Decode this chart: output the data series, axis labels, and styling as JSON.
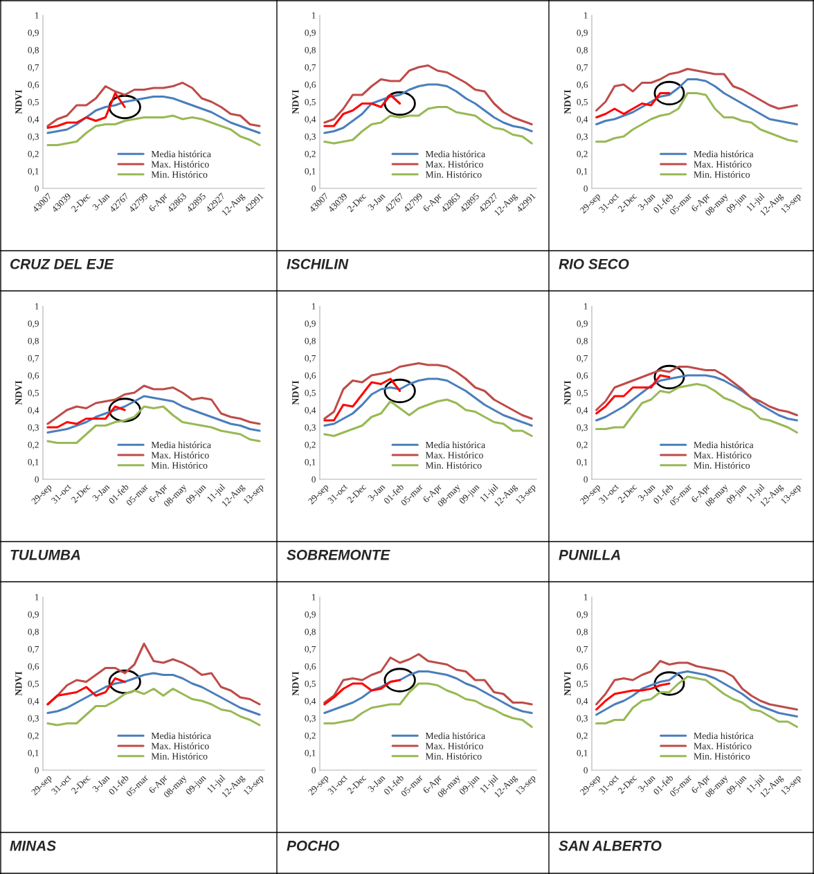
{
  "chart_data": [
    {
      "type": "line",
      "title": "CRUZ DEL EJE",
      "ylabel": "NDVI",
      "legend": "bottom",
      "ylim": [
        0,
        1
      ],
      "yticks": [
        0,
        {
          "value": 0.1,
          "label": "0,1"
        },
        {
          "value": 0.2,
          "label": "0,2"
        },
        {
          "value": 0.3,
          "label": "0,3"
        },
        {
          "value": 0.4,
          "label": "0,4"
        },
        {
          "value": 0.5,
          "label": "0,5"
        },
        {
          "value": 0.6,
          "label": "0,6"
        },
        {
          "value": 0.7,
          "label": "0,7"
        },
        {
          "value": 0.8,
          "label": "0,8"
        },
        {
          "value": 0.9,
          "label": "0,9"
        },
        1
      ],
      "categories": [
        "43007",
        null,
        "43039",
        null,
        "2-Dec",
        null,
        "3-Jan",
        null,
        "42767",
        null,
        "42799",
        null,
        "6-Apr",
        null,
        "42863",
        null,
        "42895",
        null,
        "42927",
        null,
        "12-Aug",
        null,
        "42991"
      ],
      "series": [
        {
          "name": "Media histórica",
          "color": "#4a7ebb",
          "values": [
            0.32,
            0.33,
            0.34,
            0.37,
            0.41,
            0.45,
            0.47,
            0.48,
            0.5,
            0.51,
            0.52,
            0.53,
            0.53,
            0.52,
            0.5,
            0.48,
            0.46,
            0.44,
            0.41,
            0.38,
            0.36,
            0.34,
            0.32
          ]
        },
        {
          "name": "Max. Histórico",
          "color": "#be4b48",
          "values": [
            0.36,
            0.4,
            0.42,
            0.48,
            0.48,
            0.52,
            0.59,
            0.56,
            0.54,
            0.57,
            0.57,
            0.58,
            0.58,
            0.59,
            0.61,
            0.58,
            0.52,
            0.5,
            0.47,
            0.43,
            0.42,
            0.37,
            0.36
          ]
        },
        {
          "name": "Min. Histórico",
          "color": "#98b954",
          "values": [
            0.25,
            0.25,
            0.26,
            0.27,
            0.32,
            0.36,
            0.37,
            0.37,
            0.39,
            0.4,
            0.41,
            0.41,
            0.41,
            0.42,
            0.4,
            0.41,
            0.4,
            0.38,
            0.36,
            0.34,
            0.3,
            0.28,
            0.25
          ]
        },
        {
          "color": "#ff0000",
          "values": [
            0.35,
            0.36,
            0.38,
            0.38,
            0.41,
            0.39,
            0.41,
            0.55,
            0.47,
            null,
            null,
            null,
            null,
            null,
            null,
            null,
            null,
            null,
            null,
            null,
            null,
            null,
            null
          ]
        }
      ]
    },
    {
      "type": "line",
      "title": "ISCHILIN",
      "ylabel": "NDVI",
      "legend": "bottom",
      "ylim": [
        0,
        1
      ],
      "yticks": [
        0,
        {
          "value": 0.1,
          "label": "0,1"
        },
        {
          "value": 0.2,
          "label": "0,2"
        },
        {
          "value": 0.3,
          "label": "0,3"
        },
        {
          "value": 0.4,
          "label": "0,4"
        },
        {
          "value": 0.5,
          "label": "0,5"
        },
        {
          "value": 0.6,
          "label": "0,6"
        },
        {
          "value": 0.7,
          "label": "0,7"
        },
        {
          "value": 0.8,
          "label": "0,8"
        },
        {
          "value": 0.9,
          "label": "0,9"
        },
        1
      ],
      "categories": [
        "43007",
        null,
        "43039",
        null,
        "2-Dec",
        null,
        "3-Jan",
        null,
        "42767",
        null,
        "42799",
        null,
        "6-Apr",
        null,
        "42863",
        null,
        "42895",
        null,
        "42927",
        null,
        "12-Aug",
        null,
        "42991"
      ],
      "series": [
        {
          "name": "Media histórica",
          "color": "#4a7ebb",
          "values": [
            0.32,
            0.33,
            0.35,
            0.39,
            0.43,
            0.49,
            0.51,
            0.53,
            0.54,
            0.57,
            0.59,
            0.6,
            0.6,
            0.59,
            0.56,
            0.52,
            0.49,
            0.45,
            0.41,
            0.38,
            0.36,
            0.35,
            0.33
          ]
        },
        {
          "name": "Max. Histórico",
          "color": "#be4b48",
          "values": [
            0.38,
            0.4,
            0.46,
            0.54,
            0.54,
            0.59,
            0.63,
            0.62,
            0.62,
            0.68,
            0.7,
            0.71,
            0.68,
            0.67,
            0.64,
            0.61,
            0.57,
            0.56,
            0.49,
            0.44,
            0.41,
            0.39,
            0.37
          ]
        },
        {
          "name": "Min. Histórico",
          "color": "#98b954",
          "values": [
            0.27,
            0.26,
            0.27,
            0.28,
            0.33,
            0.37,
            0.38,
            0.42,
            0.41,
            0.42,
            0.42,
            0.46,
            0.47,
            0.47,
            0.44,
            0.43,
            0.42,
            0.38,
            0.35,
            0.34,
            0.31,
            0.3,
            0.26
          ]
        },
        {
          "color": "#ff0000",
          "values": [
            0.36,
            0.36,
            0.43,
            0.45,
            0.49,
            0.49,
            0.47,
            0.54,
            0.49,
            null,
            null,
            null,
            null,
            null,
            null,
            null,
            null,
            null,
            null,
            null,
            null,
            null,
            null
          ]
        }
      ]
    },
    {
      "type": "line",
      "title": "RIO SECO",
      "ylabel": "NDVI",
      "legend": "bottom",
      "ylim": [
        0,
        1
      ],
      "yticks": [
        0,
        {
          "value": 0.1,
          "label": "0,1"
        },
        {
          "value": 0.2,
          "label": "0,2"
        },
        {
          "value": 0.3,
          "label": "0,3"
        },
        {
          "value": 0.4,
          "label": "0,4"
        },
        {
          "value": 0.5,
          "label": "0,5"
        },
        {
          "value": 0.6,
          "label": "0,6"
        },
        {
          "value": 0.7,
          "label": "0,7"
        },
        {
          "value": 0.8,
          "label": "0,8"
        },
        {
          "value": 0.9,
          "label": "0,9"
        },
        1
      ],
      "categories": [
        "29-sep",
        null,
        "31-oct",
        null,
        "2-Dec",
        null,
        "3-Jan",
        null,
        "01-feb",
        null,
        "05-mar",
        null,
        "6-Apr",
        null,
        "08-may",
        null,
        "09-jun",
        null,
        "11-jul",
        null,
        "12-Aug",
        null,
        "13-sep"
      ],
      "series": [
        {
          "name": "Media histórica",
          "color": "#4a7ebb",
          "values": [
            0.37,
            0.39,
            0.4,
            0.42,
            0.44,
            0.47,
            0.5,
            0.53,
            0.54,
            0.58,
            0.63,
            0.63,
            0.62,
            0.59,
            0.55,
            0.52,
            0.49,
            0.46,
            0.43,
            0.4,
            0.39,
            0.38,
            0.37
          ]
        },
        {
          "name": "Max. Histórico",
          "color": "#be4b48",
          "values": [
            0.45,
            0.5,
            0.59,
            0.6,
            0.56,
            0.61,
            0.61,
            0.63,
            0.66,
            0.67,
            0.69,
            0.68,
            0.67,
            0.66,
            0.66,
            0.59,
            0.57,
            0.54,
            0.51,
            0.48,
            0.46,
            0.47,
            0.48
          ]
        },
        {
          "name": "Min. Histórico",
          "color": "#98b954",
          "values": [
            0.27,
            0.27,
            0.29,
            0.3,
            0.34,
            0.37,
            0.4,
            0.42,
            0.43,
            0.46,
            0.55,
            0.55,
            0.54,
            0.46,
            0.41,
            0.41,
            0.39,
            0.38,
            0.34,
            0.32,
            0.3,
            0.28,
            0.27
          ]
        },
        {
          "color": "#ff0000",
          "values": [
            0.41,
            0.43,
            0.46,
            0.43,
            0.46,
            0.49,
            0.48,
            0.55,
            0.55,
            null,
            null,
            null,
            null,
            null,
            null,
            null,
            null,
            null,
            null,
            null,
            null,
            null,
            null
          ]
        }
      ]
    },
    {
      "type": "line",
      "title": "TULUMBA",
      "ylabel": "NDVI",
      "legend": "bottom",
      "ylim": [
        0,
        1
      ],
      "yticks": [
        0,
        {
          "value": 0.1,
          "label": "0,1"
        },
        {
          "value": 0.2,
          "label": "0,2"
        },
        {
          "value": 0.3,
          "label": "0,3"
        },
        {
          "value": 0.4,
          "label": "0,4"
        },
        {
          "value": 0.5,
          "label": "0,5"
        },
        {
          "value": 0.6,
          "label": "0,6"
        },
        {
          "value": 0.7,
          "label": "0,7"
        },
        {
          "value": 0.8,
          "label": "0,8"
        },
        {
          "value": 0.9,
          "label": "0,9"
        },
        1
      ],
      "categories": [
        "29-sep",
        null,
        "31-oct",
        null,
        "2-Dec",
        null,
        "3-Jan",
        null,
        "01-feb",
        null,
        "05-mar",
        null,
        "6-Apr",
        null,
        "08-may",
        null,
        "09-jun",
        null,
        "11-jul",
        null,
        "12-Aug",
        null,
        "13-sep"
      ],
      "series": [
        {
          "name": "Media histórica",
          "color": "#4a7ebb",
          "values": [
            0.27,
            0.28,
            0.29,
            0.31,
            0.33,
            0.36,
            0.38,
            0.4,
            0.42,
            0.45,
            0.48,
            0.47,
            0.46,
            0.45,
            0.42,
            0.4,
            0.38,
            0.36,
            0.34,
            0.32,
            0.31,
            0.29,
            0.28
          ]
        },
        {
          "name": "Max. Histórico",
          "color": "#be4b48",
          "values": [
            0.32,
            0.36,
            0.4,
            0.42,
            0.41,
            0.44,
            0.45,
            0.46,
            0.49,
            0.5,
            0.54,
            0.52,
            0.52,
            0.53,
            0.5,
            0.46,
            0.47,
            0.46,
            0.38,
            0.36,
            0.35,
            0.33,
            0.32
          ]
        },
        {
          "name": "Min. Histórico",
          "color": "#98b954",
          "values": [
            0.22,
            0.21,
            0.21,
            0.21,
            0.26,
            0.31,
            0.31,
            0.33,
            0.34,
            0.36,
            0.42,
            0.41,
            0.42,
            0.37,
            0.33,
            0.32,
            0.31,
            0.3,
            0.28,
            0.27,
            0.26,
            0.23,
            0.22
          ]
        },
        {
          "color": "#ff0000",
          "values": [
            0.3,
            0.3,
            0.33,
            0.32,
            0.35,
            0.35,
            0.35,
            0.42,
            0.4,
            null,
            null,
            null,
            null,
            null,
            null,
            null,
            null,
            null,
            null,
            null,
            null,
            null,
            null
          ]
        }
      ]
    },
    {
      "type": "line",
      "title": "SOBREMONTE",
      "ylabel": "NDVI",
      "legend": "bottom",
      "ylim": [
        0,
        1
      ],
      "yticks": [
        0,
        {
          "value": 0.1,
          "label": "0,1"
        },
        {
          "value": 0.2,
          "label": "0,2"
        },
        {
          "value": 0.3,
          "label": "0,3"
        },
        {
          "value": 0.4,
          "label": "0,4"
        },
        {
          "value": 0.5,
          "label": "0,5"
        },
        {
          "value": 0.6,
          "label": "0,6"
        },
        {
          "value": 0.7,
          "label": "0,7"
        },
        {
          "value": 0.8,
          "label": "0,8"
        },
        {
          "value": 0.9,
          "label": "0,9"
        },
        1
      ],
      "categories": [
        "29-sep",
        null,
        "31-oct",
        null,
        "2-Dec",
        null,
        "3-Jan",
        null,
        "01-feb",
        null,
        "05-mar",
        null,
        "6-Apr",
        null,
        "08-may",
        null,
        "09-jun",
        null,
        "11-jul",
        null,
        "12-Aug",
        null,
        "13-sep"
      ],
      "series": [
        {
          "name": "Media histórica",
          "color": "#4a7ebb",
          "values": [
            0.31,
            0.32,
            0.35,
            0.38,
            0.43,
            0.49,
            0.52,
            0.53,
            0.52,
            0.55,
            0.57,
            0.58,
            0.58,
            0.57,
            0.54,
            0.51,
            0.47,
            0.43,
            0.4,
            0.37,
            0.35,
            0.33,
            0.31
          ]
        },
        {
          "name": "Max. Histórico",
          "color": "#be4b48",
          "values": [
            0.35,
            0.39,
            0.52,
            0.57,
            0.56,
            0.6,
            0.61,
            0.62,
            0.65,
            0.66,
            0.67,
            0.66,
            0.66,
            0.65,
            0.62,
            0.58,
            0.53,
            0.51,
            0.46,
            0.43,
            0.4,
            0.37,
            0.35
          ]
        },
        {
          "name": "Min. Histórico",
          "color": "#98b954",
          "values": [
            0.26,
            0.25,
            0.27,
            0.29,
            0.31,
            0.36,
            0.38,
            0.45,
            0.41,
            0.37,
            0.41,
            0.43,
            0.45,
            0.46,
            0.44,
            0.4,
            0.39,
            0.36,
            0.33,
            0.32,
            0.28,
            0.28,
            0.25
          ]
        },
        {
          "color": "#ff0000",
          "values": [
            0.34,
            0.34,
            0.43,
            0.42,
            0.49,
            0.56,
            0.55,
            0.58,
            0.51,
            null,
            null,
            null,
            null,
            null,
            null,
            null,
            null,
            null,
            null,
            null,
            null,
            null,
            null
          ]
        }
      ]
    },
    {
      "type": "line",
      "title": "PUNILLA",
      "ylabel": "NDVI",
      "legend": "bottom",
      "ylim": [
        0,
        1
      ],
      "yticks": [
        0,
        {
          "value": 0.1,
          "label": "0,1"
        },
        {
          "value": 0.2,
          "label": "0,2"
        },
        {
          "value": 0.3,
          "label": "0,3"
        },
        {
          "value": 0.4,
          "label": "0,4"
        },
        {
          "value": 0.5,
          "label": "0,5"
        },
        {
          "value": 0.6,
          "label": "0,6"
        },
        {
          "value": 0.7,
          "label": "0,7"
        },
        {
          "value": 0.8,
          "label": "0,8"
        },
        {
          "value": 0.9,
          "label": "0,9"
        },
        1
      ],
      "categories": [
        "29-sep",
        null,
        "31-oct",
        null,
        "2-Dec",
        null,
        "3-Jan",
        null,
        "01-feb",
        null,
        "05-mar",
        null,
        "6-Apr",
        null,
        "08-may",
        null,
        "09-jun",
        null,
        "11-jul",
        null,
        "12-Aug",
        null,
        "13-sep"
      ],
      "series": [
        {
          "name": "Media histórica",
          "color": "#4a7ebb",
          "values": [
            0.34,
            0.36,
            0.39,
            0.42,
            0.46,
            0.5,
            0.54,
            0.57,
            0.58,
            0.59,
            0.6,
            0.6,
            0.6,
            0.59,
            0.57,
            0.54,
            0.51,
            0.47,
            0.43,
            0.4,
            0.37,
            0.35,
            0.34
          ]
        },
        {
          "name": "Max. Histórico",
          "color": "#be4b48",
          "values": [
            0.4,
            0.45,
            0.53,
            0.55,
            0.57,
            0.59,
            0.61,
            0.63,
            0.62,
            0.65,
            0.65,
            0.64,
            0.63,
            0.63,
            0.6,
            0.56,
            0.52,
            0.47,
            0.45,
            0.42,
            0.4,
            0.39,
            0.37
          ]
        },
        {
          "name": "Min. Histórico",
          "color": "#98b954",
          "values": [
            0.29,
            0.29,
            0.3,
            0.3,
            0.37,
            0.44,
            0.46,
            0.51,
            0.5,
            0.53,
            0.54,
            0.55,
            0.54,
            0.51,
            0.47,
            0.45,
            0.42,
            0.4,
            0.35,
            0.34,
            0.32,
            0.3,
            0.27
          ]
        },
        {
          "color": "#ff0000",
          "values": [
            0.38,
            0.42,
            0.48,
            0.48,
            0.53,
            0.53,
            0.53,
            0.6,
            0.59,
            null,
            null,
            null,
            null,
            null,
            null,
            null,
            null,
            null,
            null,
            null,
            null,
            null,
            null
          ]
        }
      ]
    },
    {
      "type": "line",
      "title": "MINAS",
      "ylabel": "NDVI",
      "legend": "bottom",
      "ylim": [
        0,
        1
      ],
      "yticks": [
        0,
        {
          "value": 0.1,
          "label": "0,1"
        },
        {
          "value": 0.2,
          "label": "0,2"
        },
        {
          "value": 0.3,
          "label": "0,3"
        },
        {
          "value": 0.4,
          "label": "0,4"
        },
        {
          "value": 0.5,
          "label": "0,5"
        },
        {
          "value": 0.6,
          "label": "0,6"
        },
        {
          "value": 0.7,
          "label": "0,7"
        },
        {
          "value": 0.8,
          "label": "0,8"
        },
        {
          "value": 0.9,
          "label": "0,9"
        },
        1
      ],
      "categories": [
        "29-sep",
        null,
        "31-oct",
        null,
        "2-Dec",
        null,
        "3-Jan",
        null,
        "01-feb",
        null,
        "05-mar",
        null,
        "6-Apr",
        null,
        "08-may",
        null,
        "09-jun",
        null,
        "11-jul",
        null,
        "12-Aug",
        null,
        "13-sep"
      ],
      "series": [
        {
          "name": "Media histórica",
          "color": "#4a7ebb",
          "values": [
            0.33,
            0.34,
            0.36,
            0.39,
            0.42,
            0.45,
            0.48,
            0.5,
            0.51,
            0.53,
            0.55,
            0.56,
            0.55,
            0.55,
            0.53,
            0.5,
            0.48,
            0.45,
            0.42,
            0.39,
            0.36,
            0.34,
            0.32
          ]
        },
        {
          "name": "Max. Histórico",
          "color": "#be4b48",
          "values": [
            0.38,
            0.43,
            0.49,
            0.52,
            0.51,
            0.55,
            0.59,
            0.59,
            0.56,
            0.61,
            0.73,
            0.63,
            0.62,
            0.64,
            0.62,
            0.59,
            0.55,
            0.56,
            0.48,
            0.46,
            0.42,
            0.41,
            0.38
          ]
        },
        {
          "name": "Min. Histórico",
          "color": "#98b954",
          "values": [
            0.27,
            0.26,
            0.27,
            0.27,
            0.32,
            0.37,
            0.37,
            0.4,
            0.44,
            0.46,
            0.44,
            0.47,
            0.43,
            0.47,
            0.44,
            0.41,
            0.4,
            0.38,
            0.35,
            0.34,
            0.31,
            0.29,
            0.26
          ]
        },
        {
          "color": "#ff0000",
          "values": [
            0.38,
            0.43,
            0.44,
            0.45,
            0.48,
            0.43,
            0.45,
            0.53,
            0.51,
            null,
            null,
            null,
            null,
            null,
            null,
            null,
            null,
            null,
            null,
            null,
            null,
            null,
            null
          ]
        }
      ]
    },
    {
      "type": "line",
      "title": "POCHO",
      "ylabel": "NDVI",
      "legend": "bottom",
      "ylim": [
        0,
        1
      ],
      "yticks": [
        0,
        {
          "value": 0.1,
          "label": "0,1"
        },
        {
          "value": 0.2,
          "label": "0,2"
        },
        {
          "value": 0.3,
          "label": "0,3"
        },
        {
          "value": 0.4,
          "label": "0,4"
        },
        {
          "value": 0.5,
          "label": "0,5"
        },
        {
          "value": 0.6,
          "label": "0,6"
        },
        {
          "value": 0.7,
          "label": "0,7"
        },
        {
          "value": 0.8,
          "label": "0,8"
        },
        {
          "value": 0.9,
          "label": "0,9"
        },
        1
      ],
      "categories": [
        "29-sep",
        null,
        "31-oct",
        null,
        "2-Dec",
        null,
        "3-Jan",
        null,
        "01-feb",
        null,
        "05-mar",
        null,
        "6-Apr",
        null,
        "08-may",
        null,
        "09-jun",
        null,
        "11-jul",
        null,
        "12-Aug",
        null,
        "13-sep"
      ],
      "series": [
        {
          "name": "Media histórica",
          "color": "#4a7ebb",
          "values": [
            0.33,
            0.35,
            0.37,
            0.39,
            0.42,
            0.46,
            0.48,
            0.51,
            0.52,
            0.55,
            0.57,
            0.57,
            0.56,
            0.55,
            0.53,
            0.5,
            0.48,
            0.45,
            0.42,
            0.39,
            0.36,
            0.34,
            0.33
          ]
        },
        {
          "name": "Max. Histórico",
          "color": "#be4b48",
          "values": [
            0.39,
            0.43,
            0.52,
            0.53,
            0.52,
            0.55,
            0.57,
            0.65,
            0.62,
            0.64,
            0.67,
            0.63,
            0.62,
            0.61,
            0.58,
            0.57,
            0.52,
            0.52,
            0.45,
            0.44,
            0.39,
            0.39,
            0.38
          ]
        },
        {
          "name": "Min. Histórico",
          "color": "#98b954",
          "values": [
            0.27,
            0.27,
            0.28,
            0.29,
            0.33,
            0.36,
            0.37,
            0.38,
            0.38,
            0.45,
            0.5,
            0.5,
            0.49,
            0.46,
            0.44,
            0.41,
            0.4,
            0.37,
            0.35,
            0.32,
            0.3,
            0.29,
            0.25
          ]
        },
        {
          "color": "#ff0000",
          "values": [
            0.38,
            0.42,
            0.47,
            0.5,
            0.5,
            0.46,
            0.47,
            0.51,
            0.52,
            null,
            null,
            null,
            null,
            null,
            null,
            null,
            null,
            null,
            null,
            null,
            null,
            null,
            null
          ]
        }
      ]
    },
    {
      "type": "line",
      "title": "SAN ALBERTO",
      "ylabel": "NDVI",
      "legend": "bottom",
      "ylim": [
        0,
        1
      ],
      "yticks": [
        0,
        {
          "value": 0.1,
          "label": "0,1"
        },
        {
          "value": 0.2,
          "label": "0,2"
        },
        {
          "value": 0.3,
          "label": "0,3"
        },
        {
          "value": 0.4,
          "label": "0,4"
        },
        {
          "value": 0.5,
          "label": "0,5"
        },
        {
          "value": 0.6,
          "label": "0,6"
        },
        {
          "value": 0.7,
          "label": "0,7"
        },
        {
          "value": 0.8,
          "label": "0,8"
        },
        {
          "value": 0.9,
          "label": "0,9"
        },
        1
      ],
      "categories": [
        "29-sep",
        null,
        "31-oct",
        null,
        "2-Dec",
        null,
        "3-Jan",
        null,
        "01-feb",
        null,
        "05-mar",
        null,
        "6-Apr",
        null,
        "08-may",
        null,
        "09-jun",
        null,
        "11-jul",
        null,
        "12-Aug",
        null,
        "13-sep"
      ],
      "series": [
        {
          "name": "Media histórica",
          "color": "#4a7ebb",
          "values": [
            0.32,
            0.35,
            0.38,
            0.4,
            0.43,
            0.47,
            0.49,
            0.51,
            0.52,
            0.56,
            0.57,
            0.56,
            0.55,
            0.53,
            0.5,
            0.47,
            0.44,
            0.4,
            0.37,
            0.35,
            0.33,
            0.32,
            0.31
          ]
        },
        {
          "name": "Max. Histórico",
          "color": "#be4b48",
          "values": [
            0.38,
            0.44,
            0.52,
            0.53,
            0.52,
            0.55,
            0.57,
            0.63,
            0.61,
            0.62,
            0.62,
            0.6,
            0.59,
            0.58,
            0.57,
            0.54,
            0.47,
            0.43,
            0.4,
            0.38,
            0.37,
            0.36,
            0.35
          ]
        },
        {
          "name": "Min. Histórico",
          "color": "#98b954",
          "values": [
            0.27,
            0.27,
            0.29,
            0.29,
            0.36,
            0.4,
            0.41,
            0.45,
            0.45,
            0.5,
            0.54,
            0.53,
            0.52,
            0.48,
            0.44,
            0.41,
            0.39,
            0.35,
            0.34,
            0.31,
            0.28,
            0.28,
            0.25
          ]
        },
        {
          "color": "#ff0000",
          "values": [
            0.35,
            0.4,
            0.44,
            0.45,
            0.46,
            0.46,
            0.47,
            0.49,
            0.5,
            null,
            null,
            null,
            null,
            null,
            null,
            null,
            null,
            null,
            null,
            null,
            null,
            null,
            null
          ]
        }
      ]
    }
  ]
}
